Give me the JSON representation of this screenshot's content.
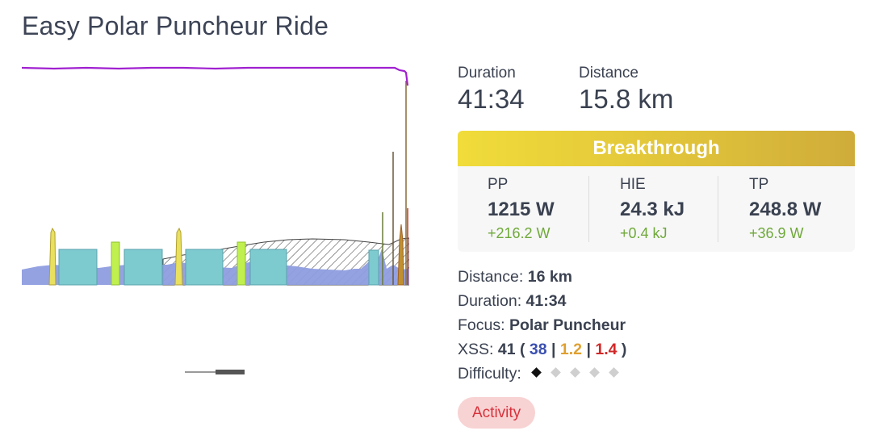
{
  "page": {
    "title": "Easy Polar Puncheur Ride"
  },
  "summary": {
    "duration_label": "Duration",
    "duration_value": "41:34",
    "distance_label": "Distance",
    "distance_value": "15.8 km"
  },
  "breakthrough": {
    "label": "Breakthrough",
    "colors": {
      "start": "#f0dc3a",
      "end": "#cfac3a"
    }
  },
  "metrics": [
    {
      "label": "PP",
      "value": "1215 W",
      "delta": "+216.2 W"
    },
    {
      "label": "HIE",
      "value": "24.3 kJ",
      "delta": "+0.4 kJ"
    },
    {
      "label": "TP",
      "value": "248.8 W",
      "delta": "+36.9 W"
    }
  ],
  "details": {
    "distance_label": "Distance:",
    "distance_value": "16 km",
    "duration_label": "Duration:",
    "duration_value": "41:34",
    "focus_label": "Focus:",
    "focus_value": "Polar Puncheur",
    "xss_label": "XSS:",
    "xss_total": "41",
    "xss_open": "(",
    "xss_low": "38",
    "xss_high": "1.2",
    "xss_peak": "1.4",
    "xss_sep": "|",
    "xss_close": ")",
    "difficulty_label": "Difficulty:",
    "difficulty_level": 1,
    "difficulty_max": 5
  },
  "badge": {
    "label": "Activity"
  },
  "colors": {
    "power_area": "#8e9de0",
    "interval_teal": "#7dcacf",
    "interval_lime": "#c0f050",
    "interval_yellow": "#e9e060",
    "mpa_line": "#a020d0",
    "delta_green": "#6fa83a",
    "xss_blue": "#3a4fb0",
    "xss_gold": "#e0a030",
    "xss_red": "#d02828"
  }
}
